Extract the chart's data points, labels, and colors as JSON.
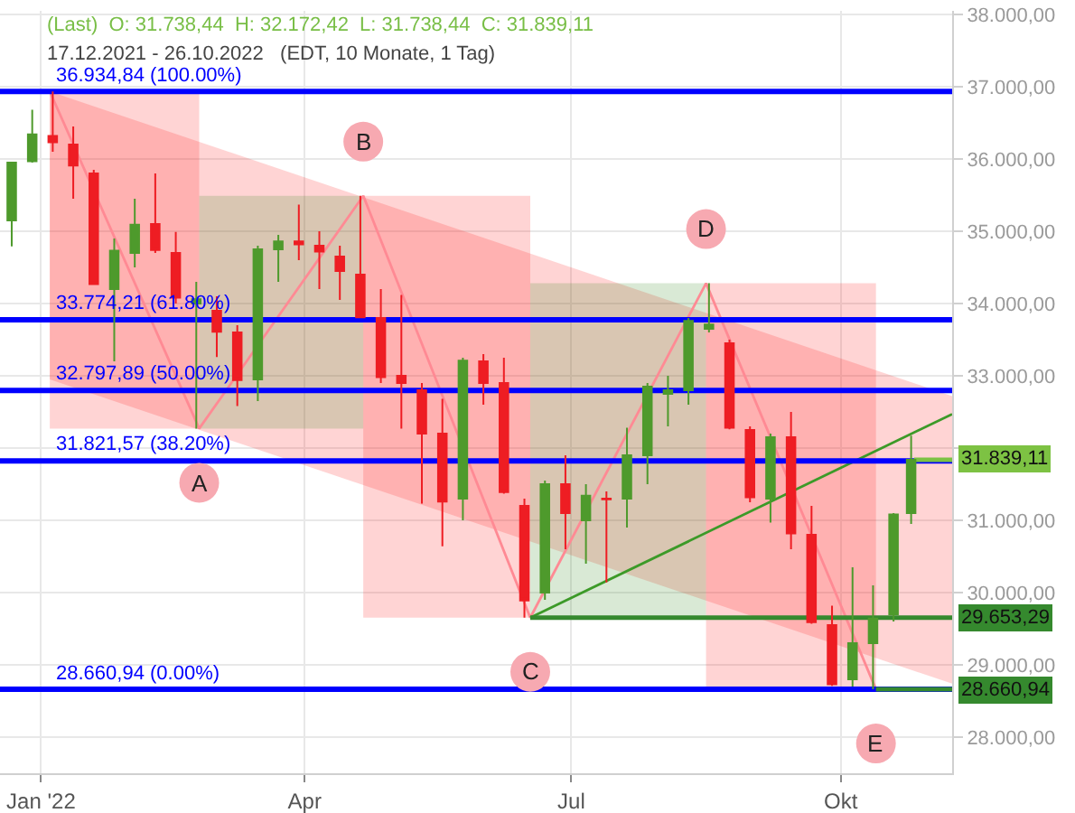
{
  "chart_data": {
    "type": "candlestick",
    "title": "(Last)  O: 31.738,44  H: 32.172,42  L: 31.738,44  C: 31.839,11",
    "subtitle": "17.12.2021 - 26.10.2022   (EDT, 10 Monate, 1 Tag)",
    "x": [
      "2021-12-22",
      "2021-12-29",
      "2022-01-05",
      "2022-01-12",
      "2022-01-19",
      "2022-01-26",
      "2022-02-02",
      "2022-02-09",
      "2022-02-16",
      "2022-02-23",
      "2022-03-02",
      "2022-03-09",
      "2022-03-16",
      "2022-03-23",
      "2022-03-30",
      "2022-04-06",
      "2022-04-13",
      "2022-04-20",
      "2022-04-27",
      "2022-05-04",
      "2022-05-11",
      "2022-05-18",
      "2022-05-25",
      "2022-06-01",
      "2022-06-08",
      "2022-06-15",
      "2022-06-22",
      "2022-06-29",
      "2022-07-06",
      "2022-07-13",
      "2022-07-20",
      "2022-07-27",
      "2022-08-03",
      "2022-08-10",
      "2022-08-17",
      "2022-08-24",
      "2022-08-31",
      "2022-09-07",
      "2022-09-14",
      "2022-09-21",
      "2022-09-28",
      "2022-10-05",
      "2022-10-12",
      "2022-10-19",
      "2022-10-25"
    ],
    "ohlc": [
      [
        35150,
        35960,
        34790,
        35950
      ],
      [
        35970,
        36680,
        35950,
        36340
      ],
      [
        36320,
        36934.84,
        36100,
        36230
      ],
      [
        36200,
        36450,
        35450,
        35910
      ],
      [
        35800,
        35850,
        34260,
        34270
      ],
      [
        34200,
        34900,
        33200,
        34730
      ],
      [
        34700,
        35450,
        34500,
        35090
      ],
      [
        35100,
        35800,
        34700,
        34740
      ],
      [
        34700,
        34990,
        34000,
        34080
      ],
      [
        34000,
        34300,
        32270,
        34060
      ],
      [
        33900,
        34100,
        33260,
        33610
      ],
      [
        33600,
        33700,
        32580,
        32940
      ],
      [
        32950,
        34800,
        32650,
        34750
      ],
      [
        34750,
        34950,
        34300,
        34860
      ],
      [
        34860,
        35370,
        34600,
        34820
      ],
      [
        34800,
        35000,
        34200,
        34720
      ],
      [
        34650,
        34800,
        34050,
        34450
      ],
      [
        34400,
        35490,
        33800,
        33810
      ],
      [
        33800,
        34200,
        32900,
        32980
      ],
      [
        33000,
        34120,
        32270,
        32900
      ],
      [
        32800,
        32900,
        31230,
        32200
      ],
      [
        32200,
        32680,
        30640,
        31260
      ],
      [
        31300,
        33250,
        31000,
        33210
      ],
      [
        33200,
        33300,
        32600,
        32900
      ],
      [
        32900,
        33250,
        31370,
        31390
      ],
      [
        31200,
        31300,
        29653.29,
        29890
      ],
      [
        30000,
        31550,
        29900,
        31500
      ],
      [
        31500,
        31900,
        30600,
        31100
      ],
      [
        31000,
        31500,
        30400,
        31340
      ],
      [
        31300,
        31400,
        30140,
        31290
      ],
      [
        31300,
        32280,
        30900,
        31900
      ],
      [
        31900,
        32900,
        31500,
        32850
      ],
      [
        32750,
        33000,
        32300,
        32800
      ],
      [
        32800,
        33800,
        32600,
        33760
      ],
      [
        33650,
        34280,
        33600,
        33710
      ],
      [
        33450,
        33500,
        32260,
        32280
      ],
      [
        32250,
        32300,
        31250,
        31320
      ],
      [
        31300,
        32200,
        30970,
        32150
      ],
      [
        32150,
        32500,
        30600,
        30820
      ],
      [
        30800,
        31200,
        29570,
        29590
      ],
      [
        29550,
        29820,
        28710,
        28730
      ],
      [
        28800,
        30350,
        28700,
        29300
      ],
      [
        29300,
        30100,
        28660.94,
        29640
      ],
      [
        29700,
        31100,
        29600,
        31080
      ],
      [
        31100,
        32172.42,
        30950,
        31839.11
      ]
    ],
    "colors": [
      "#4e9a2c",
      "#4e9a2c",
      "#ee1d23",
      "#ee1d23",
      "#ee1d23",
      "#4e9a2c",
      "#4e9a2c",
      "#ee1d23",
      "#ee1d23",
      "#4e9a2c",
      "#ee1d23",
      "#ee1d23",
      "#4e9a2c",
      "#4e9a2c",
      "#ee1d23",
      "#ee1d23",
      "#ee1d23",
      "#ee1d23",
      "#ee1d23",
      "#ee1d23",
      "#ee1d23",
      "#ee1d23",
      "#4e9a2c",
      "#ee1d23",
      "#ee1d23",
      "#ee1d23",
      "#4e9a2c",
      "#ee1d23",
      "#4e9a2c",
      "#ee1d23",
      "#4e9a2c",
      "#4e9a2c",
      "#4e9a2c",
      "#4e9a2c",
      "#4e9a2c",
      "#ee1d23",
      "#ee1d23",
      "#4e9a2c",
      "#ee1d23",
      "#ee1d23",
      "#ee1d23",
      "#4e9a2c",
      "#4e9a2c",
      "#4e9a2c",
      "#4e9a2c"
    ],
    "series": [
      {
        "type": "line",
        "color": "#ff2a2a",
        "x": [
          "2022-01-04",
          "2022-11-08"
        ],
        "values": [
          null,
          null
        ],
        "lower": [
          32950,
          28740
        ],
        "upper": [
          36934.84,
          32720
        ]
      },
      {
        "type": "line",
        "color": "#ff2a2a",
        "x": [
          "2022-01-04",
          "2022-02-24"
        ],
        "values": [
          null,
          null
        ],
        "lower": [
          32270,
          32270
        ],
        "upper": [
          36934.84,
          36934.84
        ]
      },
      {
        "type": "line",
        "color": "#3f8f2f",
        "x": [
          "2022-02-24",
          "2022-04-21"
        ],
        "values": [
          null,
          null
        ],
        "lower": [
          32270,
          32270
        ],
        "upper": [
          35490,
          35490
        ]
      },
      {
        "type": "line",
        "color": "#ff2a2a",
        "x": [
          "2022-04-21",
          "2022-06-17"
        ],
        "values": [
          null,
          null
        ],
        "lower": [
          29653.29,
          29653.29
        ],
        "upper": [
          35490,
          35490
        ]
      },
      {
        "type": "line",
        "color": "#3f8f2f",
        "x": [
          "2022-06-17",
          "2022-08-16"
        ],
        "values": [
          null,
          null
        ],
        "lower": [
          29653.29,
          29653.29
        ],
        "upper": [
          34280,
          34280
        ]
      },
      {
        "type": "line",
        "color": "#ff2a2a",
        "x": [
          "2022-08-16",
          "2022-10-13"
        ],
        "values": [
          null,
          null
        ],
        "lower": [
          28660.94,
          28660.94
        ],
        "upper": [
          34280,
          34280
        ]
      },
      {
        "type": "line",
        "color": "#ff8a94",
        "x": [
          "2022-01-04",
          "2022-02-24",
          "2022-04-21",
          "2022-06-17",
          "2022-08-16",
          "2022-10-13"
        ],
        "values": [
          36934.84,
          32270,
          35490,
          29653.29,
          34280,
          28660.94
        ]
      },
      {
        "type": "line",
        "color": "#3c9a28",
        "x": [
          "2022-06-17",
          "2022-11-08"
        ],
        "values": [
          29653.29,
          32470
        ]
      },
      {
        "type": "line",
        "name": "31.839,11",
        "color": "#7dc243",
        "x": [
          "2022-10-26",
          "2022-11-08"
        ],
        "values": [
          31839.11,
          31839.11
        ]
      },
      {
        "type": "line",
        "name": "29.653,29",
        "color": "#35892e",
        "x": [
          "2022-06-17",
          "2022-11-08"
        ],
        "values": [
          29653.29,
          29653.29
        ]
      },
      {
        "type": "line",
        "name": "28.660,94",
        "color": "#35892e",
        "x": [
          "2022-10-13",
          "2022-11-08"
        ],
        "values": [
          28660.94,
          28660.94
        ]
      }
    ],
    "ref_lines": [
      {
        "axis": "y",
        "value": 36934.84,
        "label": "36.934,84 (100.00%)",
        "color": "#0000ff"
      },
      {
        "axis": "y",
        "value": 33774.21,
        "label": "33.774,21 (61.80%)",
        "color": "#0000ff"
      },
      {
        "axis": "y",
        "value": 32797.89,
        "label": "32.797,89 (50.00%)",
        "color": "#0000ff"
      },
      {
        "axis": "y",
        "value": 31821.57,
        "label": "31.821,57 (38.20%)",
        "color": "#0000ff"
      },
      {
        "axis": "y",
        "value": 28660.94,
        "label": "28.660,94 (0.00%)",
        "color": "#0000ff"
      }
    ],
    "annotations": [
      {
        "text": "A",
        "x": "2022-02-24",
        "y": 32270
      },
      {
        "text": "B",
        "x": "2022-04-21",
        "y": 35490
      },
      {
        "text": "C",
        "x": "2022-06-17",
        "y": 29653.29
      },
      {
        "text": "D",
        "x": "2022-08-16",
        "y": 34280
      },
      {
        "text": "E",
        "x": "2022-10-13",
        "y": 28660.94
      }
    ],
    "xlim": [
      "2021-12-18",
      "2022-11-08"
    ],
    "xticks": [
      {
        "value": "2022-01-01",
        "label": "Jan '22"
      },
      {
        "value": "2022-04-01",
        "label": "Apr"
      },
      {
        "value": "2022-07-01",
        "label": "Jul"
      },
      {
        "value": "2022-10-01",
        "label": "Okt"
      }
    ],
    "ylim": [
      27500,
      38050
    ],
    "yticks": [
      {
        "value": 28000,
        "label": "28.000,00"
      },
      {
        "value": 29000,
        "label": "29.000,00"
      },
      {
        "value": 30000,
        "label": "30.000,00"
      },
      {
        "value": 31000,
        "label": "31.000,00"
      },
      {
        "value": 32000,
        "label": null
      },
      {
        "value": 33000,
        "label": "33.000,00"
      },
      {
        "value": 34000,
        "label": "34.000,00"
      },
      {
        "value": 35000,
        "label": "35.000,00"
      },
      {
        "value": 36000,
        "label": "36.000,00"
      },
      {
        "value": 37000,
        "label": "37.000,00"
      },
      {
        "value": 38000,
        "label": "38.000,00"
      }
    ],
    "grid": true
  }
}
